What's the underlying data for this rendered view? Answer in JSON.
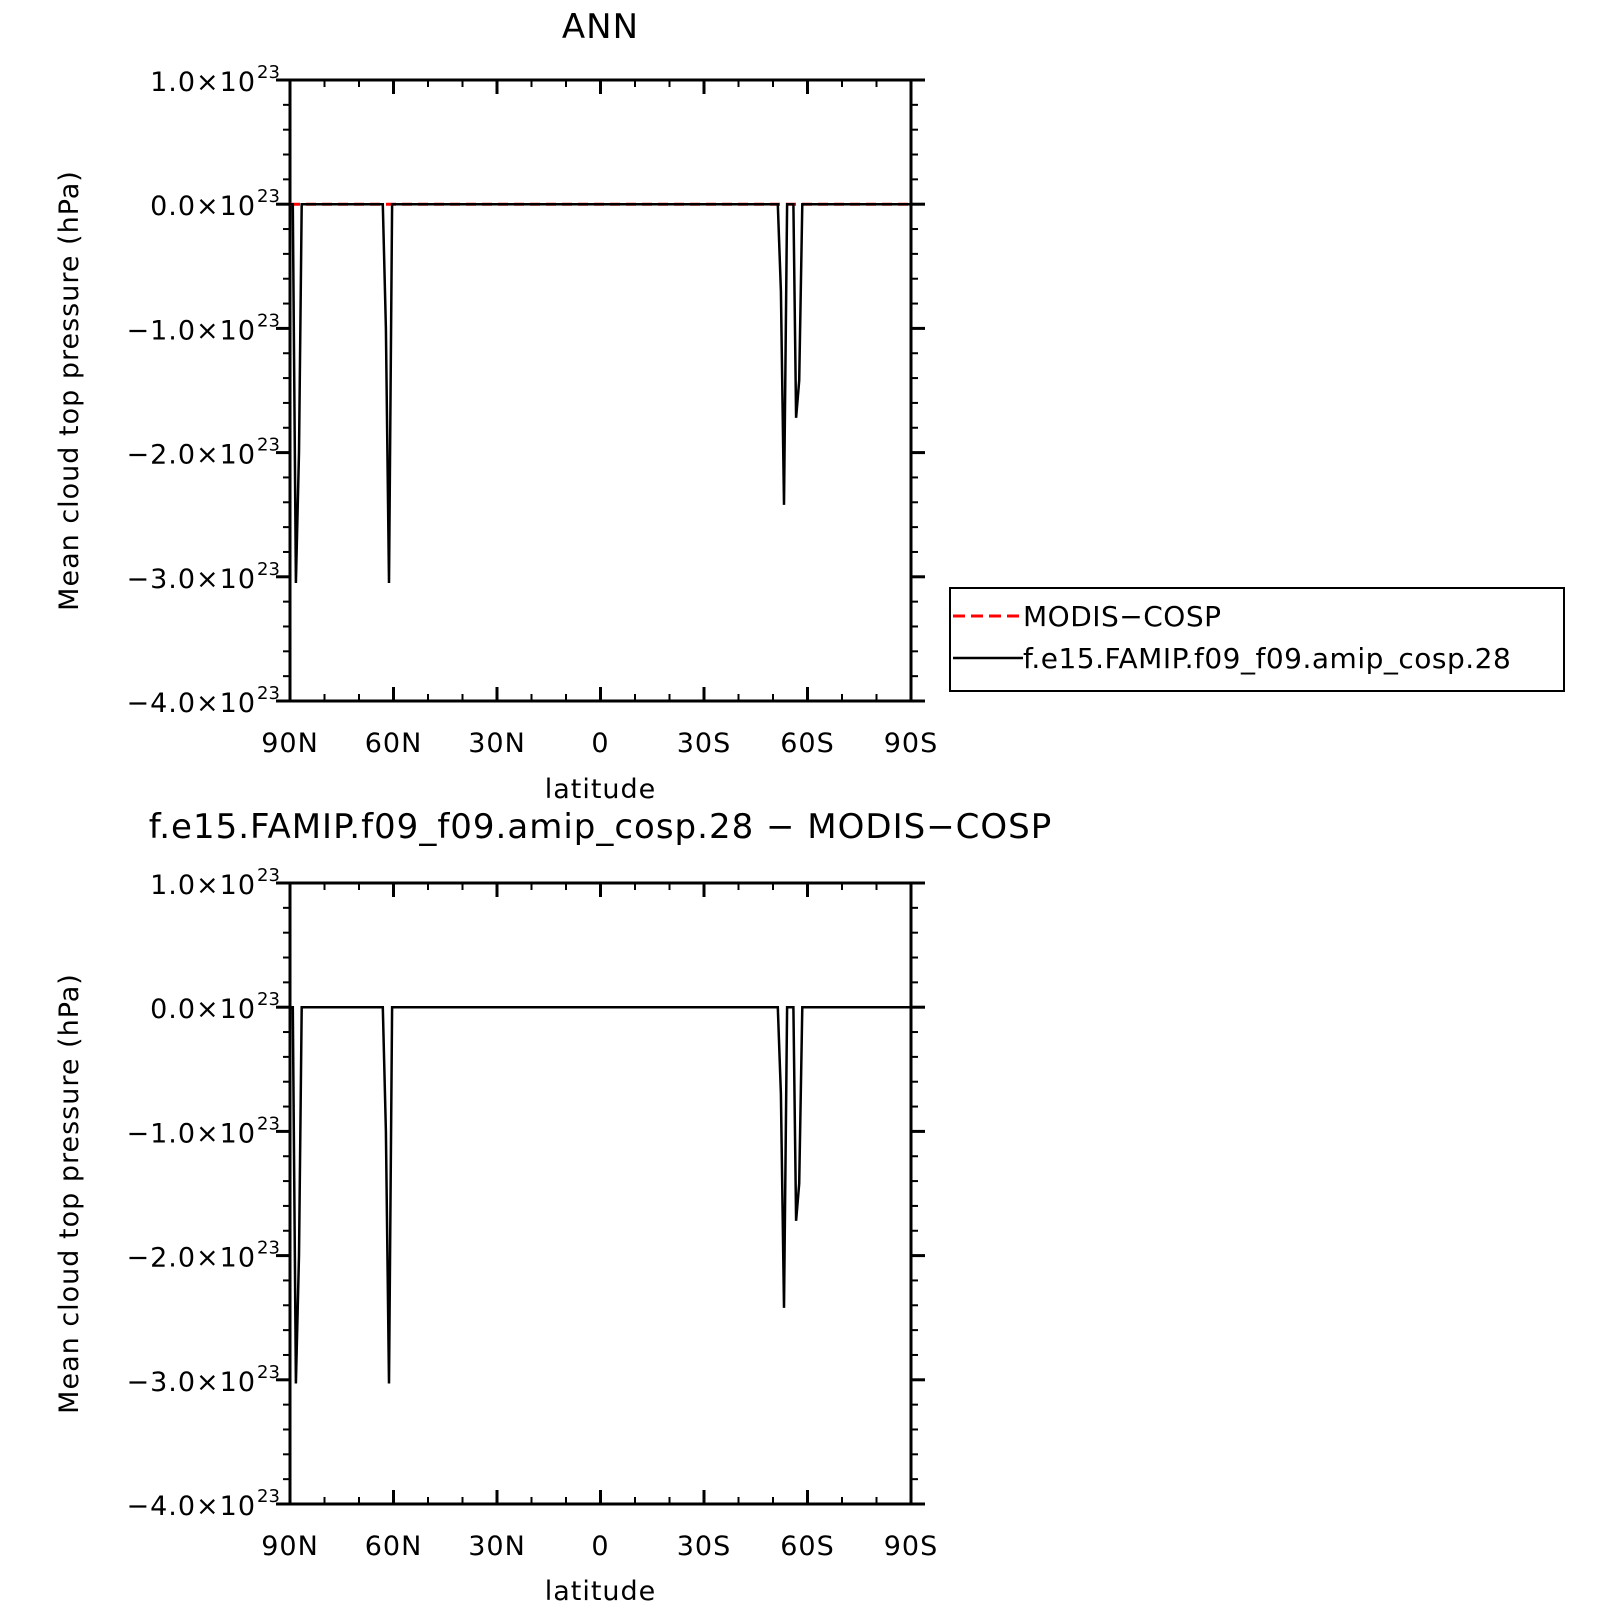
{
  "chart_data": [
    {
      "type": "line",
      "title": "ANN",
      "xlabel": "latitude",
      "ylabel": "Mean cloud top pressure (hPa)",
      "x_tick_labels": [
        "90N",
        "60N",
        "30N",
        "0",
        "30S",
        "60S",
        "90S"
      ],
      "xlim": [
        90,
        -90
      ],
      "y_tick_labels": [
        {
          "mantissa": "1.0×10",
          "exponent": "23"
        },
        {
          "mantissa": "0.0×10",
          "exponent": "23"
        },
        {
          "mantissa": "−1.0×10",
          "exponent": "23"
        },
        {
          "mantissa": "−2.0×10",
          "exponent": "23"
        },
        {
          "mantissa": "−3.0×10",
          "exponent": "23"
        },
        {
          "mantissa": "−4.0×10",
          "exponent": "23"
        }
      ],
      "y_tick_values": [
        1e+23,
        0.0,
        -1e+23,
        -2e+23,
        -3e+23,
        -4e+23
      ],
      "ylim": [
        -4e+23,
        1e+23
      ],
      "legend": {
        "placement": "right",
        "entries": [
          {
            "label": "MODIS−COSP",
            "color": "#ff0000",
            "style": "dashed"
          },
          {
            "label": "f.e15.FAMIP.f09_f09.amip_cosp.28",
            "color": "#000000",
            "style": "solid"
          }
        ]
      },
      "series": [
        {
          "name": "MODIS−COSP",
          "color": "#ff0000",
          "style": "dashed",
          "x": [
            90,
            -90
          ],
          "y": [
            0.0,
            0.0
          ]
        },
        {
          "name": "f.e15.FAMIP.f09_f09.amip_cosp.28",
          "color": "#000000",
          "style": "solid",
          "x": [
            90,
            89.2,
            88.3,
            87.4,
            86.6,
            85.7,
            63.1,
            62.2,
            61.3,
            60.4,
            59.5,
            58.6,
            -51.4,
            -52.3,
            -53.2,
            -54.1,
            -55.0,
            -55.9,
            -56.7,
            -57.6,
            -58.5,
            -59.4,
            -90
          ],
          "y": [
            0.0,
            0.0,
            -3.05e+23,
            -2e+23,
            0.0,
            0.0,
            0.0,
            -1e+23,
            -3.05e+23,
            0.0,
            0.0,
            0.0,
            0.0,
            -7e+22,
            -2.42e+23,
            0.0,
            0.0,
            0.0,
            -1.72e+23,
            -1.42e+23,
            0.0,
            0.0,
            0.0
          ]
        }
      ]
    },
    {
      "type": "line",
      "title": "f.e15.FAMIP.f09_f09.amip_cosp.28 − MODIS−COSP",
      "xlabel": "latitude",
      "ylabel": "Mean cloud top pressure (hPa)",
      "x_tick_labels": [
        "90N",
        "60N",
        "30N",
        "0",
        "30S",
        "60S",
        "90S"
      ],
      "xlim": [
        90,
        -90
      ],
      "y_tick_labels": [
        {
          "mantissa": "1.0×10",
          "exponent": "23"
        },
        {
          "mantissa": "0.0×10",
          "exponent": "23"
        },
        {
          "mantissa": "−1.0×10",
          "exponent": "23"
        },
        {
          "mantissa": "−2.0×10",
          "exponent": "23"
        },
        {
          "mantissa": "−3.0×10",
          "exponent": "23"
        },
        {
          "mantissa": "−4.0×10",
          "exponent": "23"
        }
      ],
      "y_tick_values": [
        1e+23,
        0.0,
        -1e+23,
        -2e+23,
        -3e+23,
        -4e+23
      ],
      "ylim": [
        -4e+23,
        1e+23
      ],
      "series": [
        {
          "color": "#000000",
          "style": "solid",
          "x": [
            90,
            89.2,
            88.3,
            87.4,
            86.6,
            85.7,
            63.1,
            62.2,
            61.3,
            60.4,
            59.5,
            58.6,
            -51.4,
            -52.3,
            -53.2,
            -54.1,
            -55.0,
            -55.9,
            -56.7,
            -57.6,
            -58.5,
            -59.4,
            -90
          ],
          "y": [
            0.0,
            0.0,
            -3.03e+23,
            -2e+23,
            0.0,
            0.0,
            0.0,
            -1e+23,
            -3.03e+23,
            0.0,
            0.0,
            0.0,
            0.0,
            -7e+22,
            -2.42e+23,
            0.0,
            0.0,
            0.0,
            -1.72e+23,
            -1.42e+23,
            0.0,
            0.0,
            0.0
          ]
        }
      ]
    }
  ]
}
